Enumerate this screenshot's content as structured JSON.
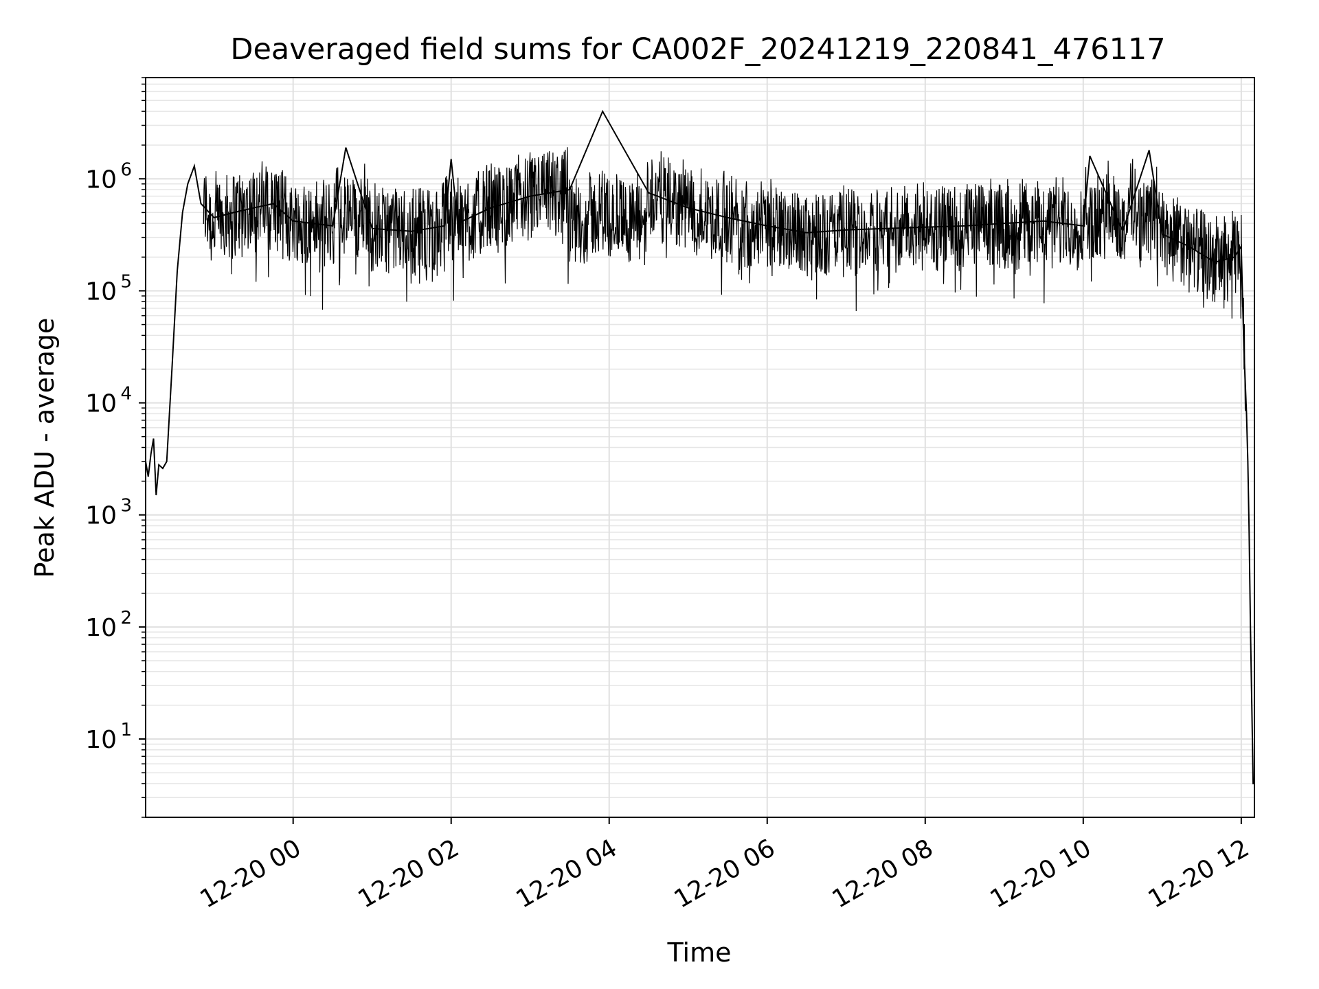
{
  "chart_data": {
    "type": "line",
    "title": "Deaveraged field sums for CA002F_20241219_220841_476117",
    "xlabel": "Time",
    "ylabel": "Peak ADU - average",
    "yscale": "log",
    "grid": true,
    "legend": "none",
    "line_color": "#000000",
    "xlim": [
      "2024-12-19T22:08",
      "2024-12-20T12:10"
    ],
    "ylim": [
      2,
      8000000
    ],
    "x_ticks": [
      {
        "value": "2024-12-20T00:00",
        "label": "12-20 00"
      },
      {
        "value": "2024-12-20T02:00",
        "label": "12-20 02"
      },
      {
        "value": "2024-12-20T04:00",
        "label": "12-20 04"
      },
      {
        "value": "2024-12-20T06:00",
        "label": "12-20 06"
      },
      {
        "value": "2024-12-20T08:00",
        "label": "12-20 08"
      },
      {
        "value": "2024-12-20T10:00",
        "label": "12-20 10"
      },
      {
        "value": "2024-12-20T12:00",
        "label": "12-20 12"
      }
    ],
    "y_ticks": [
      {
        "value": 10,
        "base": "10",
        "exp": "1"
      },
      {
        "value": 100,
        "base": "10",
        "exp": "2"
      },
      {
        "value": 1000,
        "base": "10",
        "exp": "3"
      },
      {
        "value": 10000,
        "base": "10",
        "exp": "4"
      },
      {
        "value": 100000,
        "base": "10",
        "exp": "5"
      },
      {
        "value": 1000000,
        "base": "10",
        "exp": "6"
      }
    ],
    "series": [
      {
        "x": [
          "2024-12-19T22:08",
          "2024-12-19T22:10",
          "2024-12-19T22:12",
          "2024-12-19T22:14",
          "2024-12-19T22:16",
          "2024-12-19T22:18",
          "2024-12-19T22:21",
          "2024-12-19T22:24",
          "2024-12-19T22:28",
          "2024-12-19T22:32",
          "2024-12-19T22:36",
          "2024-12-19T22:40",
          "2024-12-19T22:45",
          "2024-12-19T22:50",
          "2024-12-19T23:00",
          "2024-12-19T23:15",
          "2024-12-19T23:30",
          "2024-12-19T23:45",
          "2024-12-20T00:00",
          "2024-12-20T00:30",
          "2024-12-20T00:40",
          "2024-12-20T01:00",
          "2024-12-20T01:30",
          "2024-12-20T01:55",
          "2024-12-20T02:00",
          "2024-12-20T02:05",
          "2024-12-20T02:30",
          "2024-12-20T03:00",
          "2024-12-20T03:30",
          "2024-12-20T03:55",
          "2024-12-20T04:30",
          "2024-12-20T05:00",
          "2024-12-20T05:30",
          "2024-12-20T06:00",
          "2024-12-20T06:30",
          "2024-12-20T07:00",
          "2024-12-20T07:30",
          "2024-12-20T08:00",
          "2024-12-20T08:30",
          "2024-12-20T09:00",
          "2024-12-20T09:30",
          "2024-12-20T10:00",
          "2024-12-20T10:05",
          "2024-12-20T10:30",
          "2024-12-20T10:50",
          "2024-12-20T11:00",
          "2024-12-20T11:20",
          "2024-12-20T11:40",
          "2024-12-20T11:55",
          "2024-12-20T12:00",
          "2024-12-20T12:02",
          "2024-12-20T12:04",
          "2024-12-20T12:05",
          "2024-12-20T12:06",
          "2024-12-20T12:07",
          "2024-12-20T12:08",
          "2024-12-20T12:09",
          "2024-12-20T12:10"
        ],
        "y": [
          3000,
          2200,
          3500,
          4800,
          1500,
          2800,
          2600,
          3000,
          20000,
          150000,
          500000,
          900000,
          1300000,
          600000,
          450000,
          500000,
          550000,
          600000,
          420000,
          380000,
          1900000,
          360000,
          340000,
          380000,
          1500000,
          400000,
          550000,
          700000,
          800000,
          4000000,
          750000,
          550000,
          450000,
          380000,
          330000,
          350000,
          360000,
          370000,
          380000,
          400000,
          420000,
          380000,
          1600000,
          340000,
          1800000,
          320000,
          250000,
          180000,
          200000,
          250000,
          30000,
          8000,
          3000,
          700,
          100,
          20,
          4,
          4
        ]
      }
    ]
  }
}
